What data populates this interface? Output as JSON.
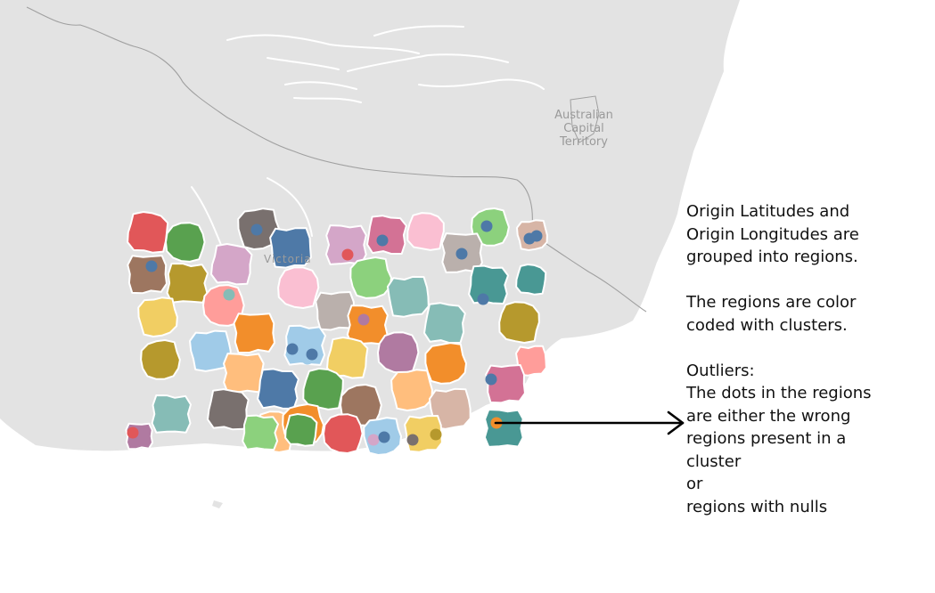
{
  "map": {
    "territory_label": "Australian\nCapital\nTerritory",
    "state_label": "Victoria",
    "colors": {
      "land": "#e3e3e3",
      "sea": "#ffffff",
      "border": "#a0a0a0",
      "rivers": "#ffffff",
      "arrow": "#000000"
    }
  },
  "regions": [
    {
      "cluster": "red",
      "fill": "#e15759"
    },
    {
      "cluster": "green",
      "fill": "#59a14f"
    },
    {
      "cluster": "dark-gray",
      "fill": "#79706e",
      "dots": [
        "#4e79a7"
      ]
    },
    {
      "cluster": "blue",
      "fill": "#4e79a7"
    },
    {
      "cluster": "pink-purple",
      "fill": "#d4a6c8",
      "dots": [
        "#e15759"
      ]
    },
    {
      "cluster": "dark-pink",
      "fill": "#d37295",
      "dots": [
        "#4e79a7"
      ]
    },
    {
      "cluster": "pink",
      "fill": "#fabfd2"
    },
    {
      "cluster": "light-green",
      "fill": "#8cd17d",
      "dots": [
        "#4e79a7"
      ]
    },
    {
      "cluster": "tan",
      "fill": "#d7b5a6",
      "dots": [
        "#4e79a7",
        "#4e79a7"
      ]
    },
    {
      "cluster": "brown",
      "fill": "#9d7660",
      "dots": [
        "#4e79a7"
      ]
    },
    {
      "cluster": "olive",
      "fill": "#b6992d"
    },
    {
      "cluster": "pink-purple",
      "fill": "#d4a6c8"
    },
    {
      "cluster": "pink",
      "fill": "#fabfd2"
    },
    {
      "cluster": "light-green",
      "fill": "#8cd17d"
    },
    {
      "cluster": "teal-light",
      "fill": "#86bcb6"
    },
    {
      "cluster": "gray-tan",
      "fill": "#bab0ac",
      "dots": [
        "#4e79a7"
      ]
    },
    {
      "cluster": "teal",
      "fill": "#499894",
      "dots": [
        "#4e79a7"
      ]
    },
    {
      "cluster": "teal",
      "fill": "#499894"
    },
    {
      "cluster": "salmon",
      "fill": "#ff9d9a",
      "dots": [
        "#86bcb6"
      ]
    },
    {
      "cluster": "yellow",
      "fill": "#f1ce63"
    },
    {
      "cluster": "gray-tan",
      "fill": "#bab0ac"
    },
    {
      "cluster": "orange",
      "fill": "#f28e2b",
      "dots": [
        "#b07aa1"
      ]
    },
    {
      "cluster": "teal-light",
      "fill": "#86bcb6"
    },
    {
      "cluster": "olive",
      "fill": "#b6992d"
    },
    {
      "cluster": "olive",
      "fill": "#b6992d"
    },
    {
      "cluster": "light-blue",
      "fill": "#a0cbe8"
    },
    {
      "cluster": "orange",
      "fill": "#f28e2b"
    },
    {
      "cluster": "light-blue",
      "fill": "#a0cbe8"
    },
    {
      "cluster": "yellow",
      "fill": "#f1ce63",
      "dots": [
        "#4e79a7",
        "#a0cbe8",
        "#4e79a7"
      ]
    },
    {
      "cluster": "purple",
      "fill": "#b07aa1"
    },
    {
      "cluster": "orange",
      "fill": "#f28e2b"
    },
    {
      "cluster": "salmon",
      "fill": "#ff9d9a"
    },
    {
      "cluster": "peach",
      "fill": "#ffbe7d"
    },
    {
      "cluster": "blue",
      "fill": "#4e79a7"
    },
    {
      "cluster": "green",
      "fill": "#59a14f"
    },
    {
      "cluster": "brown",
      "fill": "#9d7660"
    },
    {
      "cluster": "peach",
      "fill": "#ffbe7d"
    },
    {
      "cluster": "dark-pink",
      "fill": "#d37295"
    },
    {
      "cluster": "teal-light",
      "fill": "#86bcb6",
      "dots": [
        "#4e79a7"
      ]
    },
    {
      "cluster": "dark-gray",
      "fill": "#79706e",
      "dots": [
        "#86bcb6"
      ]
    },
    {
      "cluster": "peach",
      "fill": "#ffbe7d"
    },
    {
      "cluster": "orange",
      "fill": "#f28e2b"
    },
    {
      "cluster": "tan",
      "fill": "#d7b5a6"
    },
    {
      "cluster": "purple",
      "fill": "#b07aa1",
      "dots": [
        "#e15759"
      ]
    },
    {
      "cluster": "light-green",
      "fill": "#8cd17d"
    },
    {
      "cluster": "green",
      "fill": "#59a14f"
    },
    {
      "cluster": "red",
      "fill": "#e15759"
    },
    {
      "cluster": "light-blue",
      "fill": "#a0cbe8",
      "dots": [
        "#d4a6c8",
        "#4e79a7"
      ]
    },
    {
      "cluster": "yellow",
      "fill": "#f1ce63",
      "dots": [
        "#79706e",
        "#b6992d"
      ]
    },
    {
      "cluster": "teal",
      "fill": "#499894",
      "dots": [
        "#f28e2b"
      ]
    }
  ],
  "annotation": {
    "para1_line1": "Origin Latitudes and",
    "para1_line2": "Origin Longitudes are",
    "para1_line3": "grouped into regions.",
    "para2_line1": "The regions are color",
    "para2_line2": "coded with clusters.",
    "para3_line1": "Outliers:",
    "para3_line2": "The dots in the regions",
    "para3_line3": "are either the wrong",
    "para3_line4": "regions present in a",
    "para3_line5": "cluster",
    "para3_line6": "or",
    "para3_line7": "regions with nulls"
  }
}
